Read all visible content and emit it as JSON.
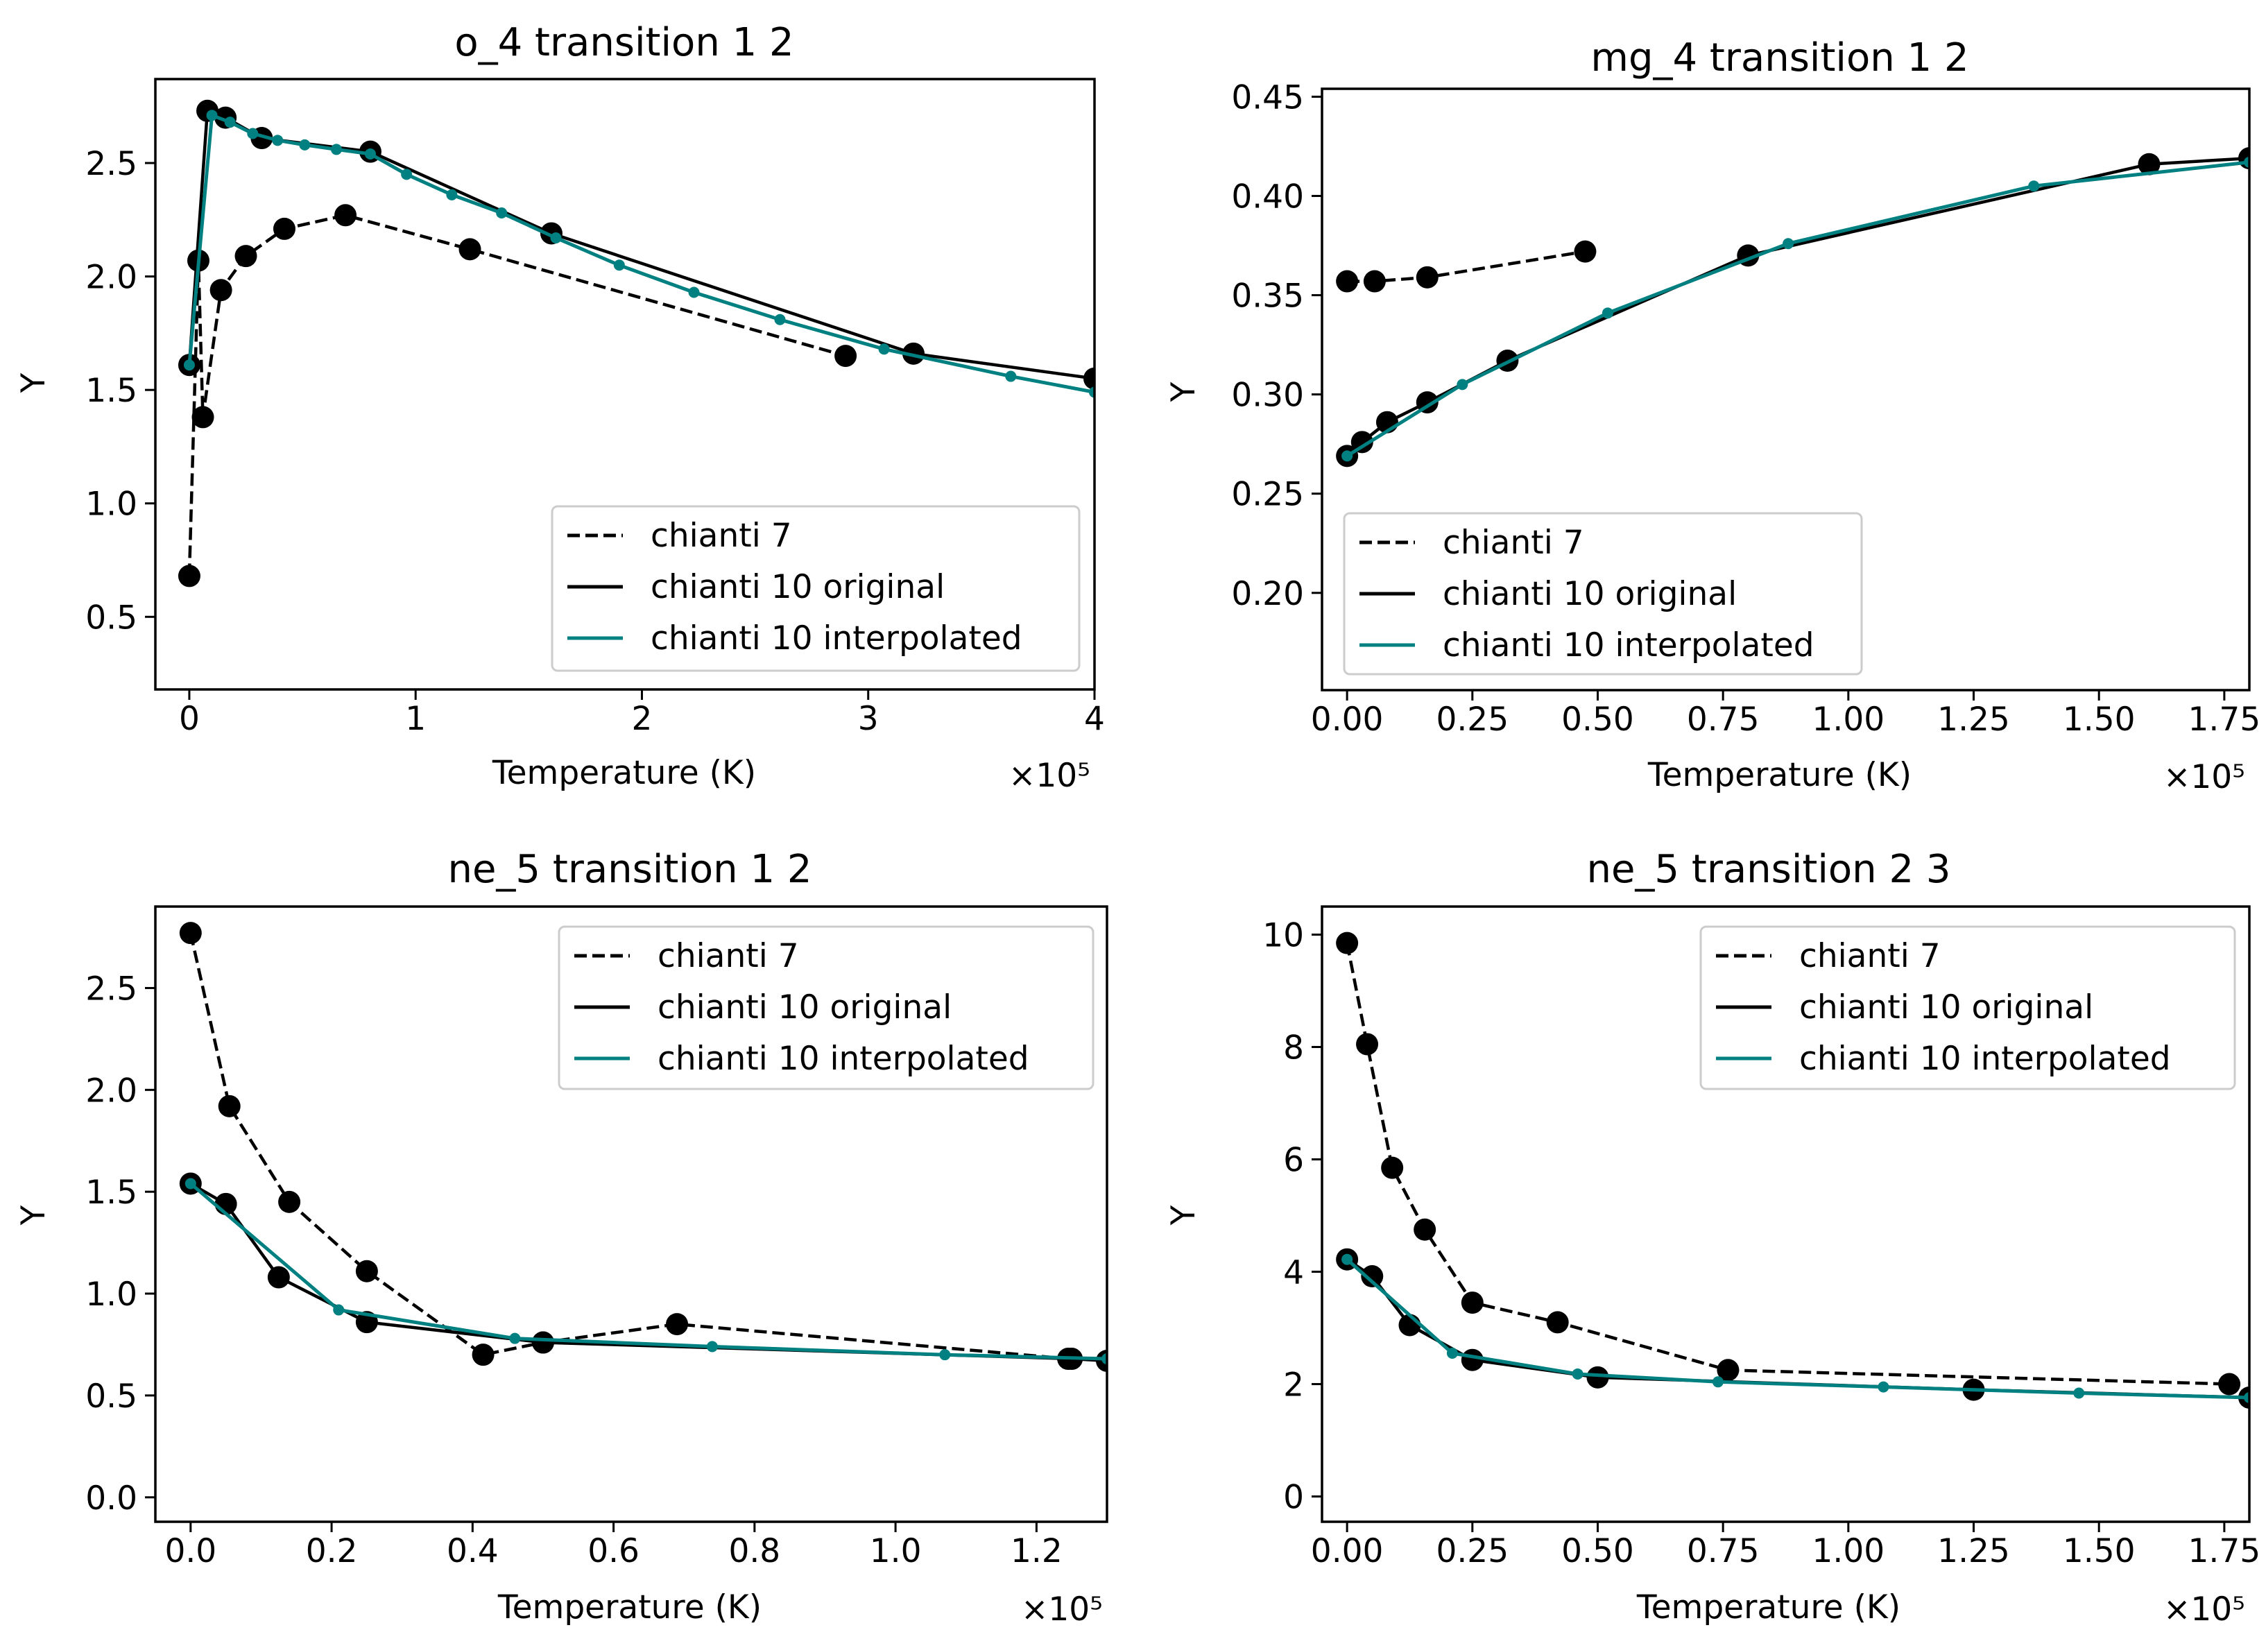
{
  "colors": {
    "c7": "#000000",
    "c10": "#000000",
    "interp": "#008080",
    "background": "#ffffff"
  },
  "chart_data": [
    {
      "type": "line",
      "title": "o_4 transition 1 2",
      "xlabel": "Temperature (K)",
      "ylabel": "Y",
      "x_offset_label": "×10⁵",
      "x_scale": 100000,
      "xlim": [
        -0.15,
        4.0
      ],
      "ylim": [
        0.18,
        2.87
      ],
      "xticks": [
        0,
        1,
        2,
        3,
        4
      ],
      "xtick_labels": [
        "0",
        "1",
        "2",
        "3",
        "4"
      ],
      "yticks": [
        0.5,
        1.0,
        1.5,
        2.0,
        2.5
      ],
      "ytick_labels": [
        "0.5",
        "1.0",
        "1.5",
        "2.0",
        "2.5"
      ],
      "legend_loc": "lower right",
      "series": [
        {
          "name": "chianti 7",
          "style": "dashed",
          "color": "#000000",
          "marker": "large",
          "x": [
            0.0,
            0.04,
            0.06,
            0.14,
            0.25,
            0.42,
            0.69,
            1.24,
            2.9
          ],
          "y": [
            0.68,
            2.07,
            1.38,
            1.94,
            2.09,
            2.21,
            2.27,
            2.12,
            1.65
          ]
        },
        {
          "name": "chianti 10 original",
          "style": "solid",
          "color": "#000000",
          "marker": "large",
          "x": [
            0.0,
            0.08,
            0.16,
            0.32,
            0.8,
            1.6,
            3.2,
            4.0
          ],
          "y": [
            1.61,
            2.73,
            2.7,
            2.61,
            2.55,
            2.19,
            1.66,
            1.55
          ]
        },
        {
          "name": "chianti 10 interpolated",
          "style": "solid",
          "color": "#008080",
          "marker": "small",
          "x": [
            0.0,
            0.1,
            0.18,
            0.28,
            0.39,
            0.51,
            0.65,
            0.8,
            0.96,
            1.16,
            1.38,
            1.62,
            1.9,
            2.23,
            2.61,
            3.07,
            3.63,
            4.0
          ],
          "y": [
            1.61,
            2.71,
            2.68,
            2.63,
            2.6,
            2.58,
            2.56,
            2.54,
            2.45,
            2.36,
            2.28,
            2.17,
            2.05,
            1.93,
            1.81,
            1.68,
            1.56,
            1.49
          ]
        }
      ]
    },
    {
      "type": "line",
      "title": "mg_4 transition 1 2",
      "xlabel": "Temperature (K)",
      "ylabel": "Y",
      "x_offset_label": "×10⁵",
      "x_scale": 100000,
      "xlim": [
        -0.05,
        1.8
      ],
      "ylim": [
        0.151,
        0.454
      ],
      "xticks": [
        0,
        0.25,
        0.5,
        0.75,
        1.0,
        1.25,
        1.5,
        1.75
      ],
      "xtick_labels": [
        "0.00",
        "0.25",
        "0.50",
        "0.75",
        "1.00",
        "1.25",
        "1.50",
        "1.75"
      ],
      "yticks": [
        0.2,
        0.25,
        0.3,
        0.35,
        0.4,
        0.45
      ],
      "ytick_labels": [
        "0.20",
        "0.25",
        "0.30",
        "0.35",
        "0.40",
        "0.45"
      ],
      "legend_loc": "lower left",
      "series": [
        {
          "name": "chianti 7",
          "style": "dashed",
          "color": "#000000",
          "marker": "large",
          "x": [
            0.0,
            0.055,
            0.16,
            0.475
          ],
          "y": [
            0.357,
            0.357,
            0.359,
            0.372
          ]
        },
        {
          "name": "chianti 10 original",
          "style": "solid",
          "color": "#000000",
          "marker": "large",
          "x": [
            0.0,
            0.03,
            0.08,
            0.16,
            0.32,
            0.8,
            1.6,
            1.8
          ],
          "y": [
            0.269,
            0.276,
            0.286,
            0.296,
            0.317,
            0.37,
            0.416,
            0.419
          ]
        },
        {
          "name": "chianti 10 interpolated",
          "style": "solid",
          "color": "#008080",
          "marker": "small",
          "x": [
            0.0,
            0.23,
            0.52,
            0.88,
            1.37,
            1.8
          ],
          "y": [
            0.269,
            0.305,
            0.341,
            0.376,
            0.405,
            0.417
          ]
        }
      ]
    },
    {
      "type": "line",
      "title": "ne_5 transition 1 2",
      "xlabel": "Temperature (K)",
      "ylabel": "Y",
      "x_offset_label": "×10⁵",
      "x_scale": 100000,
      "xlim": [
        -0.05,
        1.3
      ],
      "ylim": [
        -0.12,
        2.9
      ],
      "xticks": [
        0,
        0.2,
        0.4,
        0.6,
        0.8,
        1.0,
        1.2
      ],
      "xtick_labels": [
        "0.0",
        "0.2",
        "0.4",
        "0.6",
        "0.8",
        "1.0",
        "1.2"
      ],
      "yticks": [
        0,
        0.5,
        1.0,
        1.5,
        2.0,
        2.5
      ],
      "ytick_labels": [
        "0.0",
        "0.5",
        "1.0",
        "1.5",
        "2.0",
        "2.5"
      ],
      "legend_loc": "upper right",
      "series": [
        {
          "name": "chianti 7",
          "style": "dashed",
          "color": "#000000",
          "marker": "large",
          "x": [
            0.0,
            0.055,
            0.14,
            0.25,
            0.415,
            0.5,
            0.69,
            1.245
          ],
          "y": [
            2.77,
            1.92,
            1.45,
            1.11,
            0.7,
            0.76,
            0.85,
            0.68
          ]
        },
        {
          "name": "chianti 10 original",
          "style": "solid",
          "color": "#000000",
          "marker": "large",
          "x": [
            0.0,
            0.05,
            0.125,
            0.25,
            0.5,
            1.25,
            1.3
          ],
          "y": [
            1.54,
            1.44,
            1.08,
            0.86,
            0.76,
            0.68,
            0.67
          ]
        },
        {
          "name": "chianti 10 interpolated",
          "style": "solid",
          "color": "#008080",
          "marker": "small",
          "x": [
            0.0,
            0.21,
            0.46,
            0.74,
            1.07,
            1.3
          ],
          "y": [
            1.54,
            0.92,
            0.78,
            0.74,
            0.7,
            0.68
          ]
        }
      ]
    },
    {
      "type": "line",
      "title": "ne_5 transition 2 3",
      "xlabel": "Temperature (K)",
      "ylabel": "Y",
      "x_offset_label": "×10⁵",
      "x_scale": 100000,
      "xlim": [
        -0.05,
        1.8
      ],
      "ylim": [
        -0.45,
        10.5
      ],
      "xticks": [
        0,
        0.25,
        0.5,
        0.75,
        1.0,
        1.25,
        1.5,
        1.75
      ],
      "xtick_labels": [
        "0.00",
        "0.25",
        "0.50",
        "0.75",
        "1.00",
        "1.25",
        "1.50",
        "1.75"
      ],
      "yticks": [
        0,
        2,
        4,
        6,
        8,
        10
      ],
      "ytick_labels": [
        "0",
        "2",
        "4",
        "6",
        "8",
        "10"
      ],
      "legend_loc": "upper right",
      "series": [
        {
          "name": "chianti 7",
          "style": "dashed",
          "color": "#000000",
          "marker": "large",
          "x": [
            0.0,
            0.04,
            0.09,
            0.155,
            0.25,
            0.42,
            0.76,
            1.76
          ],
          "y": [
            9.85,
            8.05,
            5.85,
            4.75,
            3.45,
            3.1,
            2.25,
            2.0
          ]
        },
        {
          "name": "chianti 10 original",
          "style": "solid",
          "color": "#000000",
          "marker": "large",
          "x": [
            0.0,
            0.05,
            0.125,
            0.25,
            0.5,
            1.25,
            1.8
          ],
          "y": [
            4.22,
            3.92,
            3.05,
            2.43,
            2.12,
            1.9,
            1.76
          ]
        },
        {
          "name": "chianti 10 interpolated",
          "style": "solid",
          "color": "#008080",
          "marker": "small",
          "x": [
            0.0,
            0.21,
            0.46,
            0.74,
            1.07,
            1.46,
            1.8
          ],
          "y": [
            4.22,
            2.55,
            2.18,
            2.04,
            1.95,
            1.84,
            1.76
          ]
        }
      ]
    }
  ]
}
